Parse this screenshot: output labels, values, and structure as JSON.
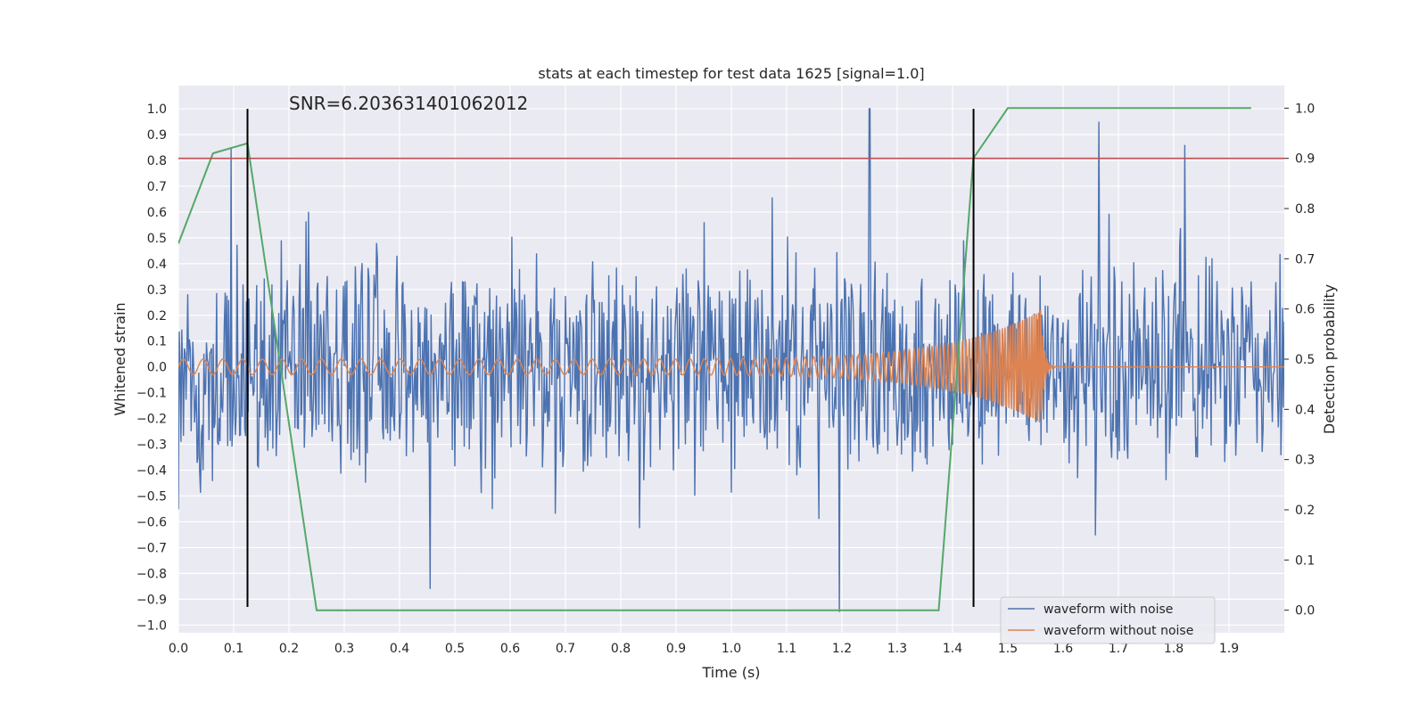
{
  "chart_data": {
    "type": "line",
    "title": "stats at each timestep for test data 1625 [signal=1.0]",
    "xlabel": "Time (s)",
    "ylabel_left": "Whitened strain",
    "ylabel_right": "Detection probability",
    "xlim": [
      0.0,
      2.0
    ],
    "ylim_left": [
      -1.03,
      1.09
    ],
    "ylim_right": [
      -0.045,
      1.045
    ],
    "x_ticks": [
      "0.0",
      "0.1",
      "0.2",
      "0.3",
      "0.4",
      "0.5",
      "0.6",
      "0.7",
      "0.8",
      "0.9",
      "1.0",
      "1.1",
      "1.2",
      "1.3",
      "1.4",
      "1.5",
      "1.6",
      "1.7",
      "1.8",
      "1.9"
    ],
    "y_ticks_left": [
      "1.0",
      "0.9",
      "0.8",
      "0.7",
      "0.6",
      "0.5",
      "0.4",
      "0.3",
      "0.2",
      "0.1",
      "0.0",
      "−0.1",
      "−0.2",
      "−0.3",
      "−0.4",
      "−0.5",
      "−0.6",
      "−0.7",
      "−0.8",
      "−0.9",
      "−1.0"
    ],
    "y_ticks_right": [
      "1.0",
      "0.9",
      "0.8",
      "0.7",
      "0.6",
      "0.5",
      "0.4",
      "0.3",
      "0.2",
      "0.1",
      "0.0"
    ],
    "annotation": "SNR=6.203631401062012",
    "threshold_line": {
      "axis": "right",
      "value": 0.9,
      "color": "#c44e52"
    },
    "vertical_markers": [
      0.125,
      1.438
    ],
    "series": [
      {
        "name": "waveform with noise",
        "axis": "left",
        "color": "#4c72b0",
        "kind": "noise",
        "amplitude": 0.4,
        "spikes": [
          [
            0.095,
            0.85
          ],
          [
            0.455,
            -0.86
          ],
          [
            1.195,
            -0.95
          ],
          [
            1.25,
            1.0
          ],
          [
            1.665,
            0.95
          ],
          [
            1.82,
            0.86
          ]
        ]
      },
      {
        "name": "waveform without noise",
        "axis": "left",
        "color": "#dd8452",
        "kind": "chirp",
        "start_amplitude": 0.03,
        "start_frequency": 28,
        "peak_time": 1.56,
        "peak_amplitude": 0.22,
        "peak_frequency": 260
      },
      {
        "name": "detection probability",
        "axis": "right",
        "color": "#55a868",
        "x": [
          0.0,
          0.0625,
          0.125,
          0.25,
          0.3,
          0.375,
          1.0,
          1.25,
          1.375,
          1.4375,
          1.5,
          1.94
        ],
        "y": [
          0.73,
          0.91,
          0.93,
          0.0,
          0.0,
          0.0,
          0.0,
          0.0,
          0.0,
          0.9,
          1.0,
          1.0
        ]
      }
    ],
    "legend": [
      {
        "label": "waveform with noise",
        "color": "#4c72b0"
      },
      {
        "label": "waveform without noise",
        "color": "#dd8452"
      }
    ],
    "legend_position": "lower-right",
    "grid": true
  }
}
